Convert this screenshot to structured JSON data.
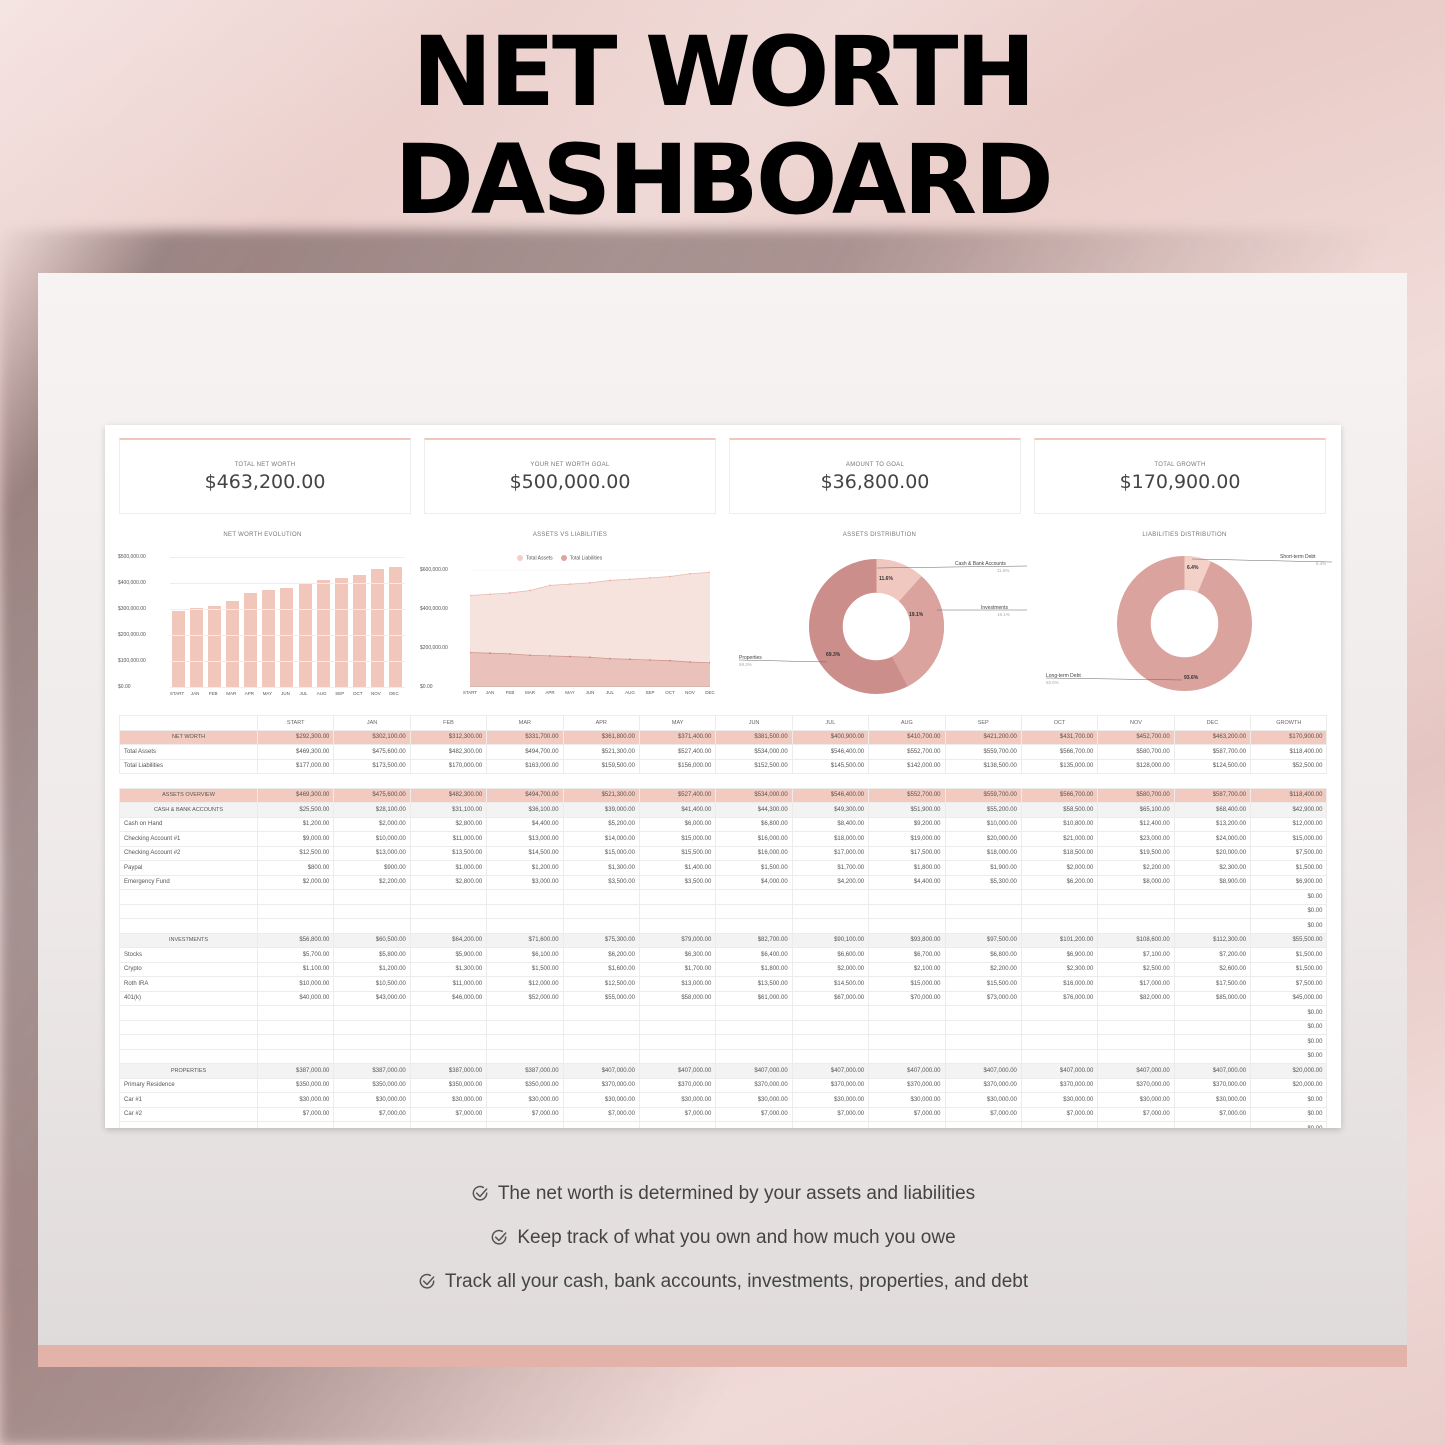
{
  "header": {
    "title_line1": "NET WORTH",
    "title_line2": "DASHBOARD"
  },
  "colors": {
    "accent_pink": "#f2cabf",
    "bar_pink": "#f1c7bb",
    "assets_fill": "#f6e2dc",
    "liabilities_fill": "#e8b9b2",
    "donut_dark": "#cc8e8a",
    "donut_mid": "#dba39d",
    "donut_light": "#f0c8c0",
    "footer_band": "#e3b2a8"
  },
  "kpis": [
    {
      "label": "TOTAL NET WORTH",
      "value": "$463,200.00"
    },
    {
      "label": "YOUR NET WORTH GOAL",
      "value": "$500,000.00"
    },
    {
      "label": "AMOUNT TO GOAL",
      "value": "$36,800.00"
    },
    {
      "label": "TOTAL GROWTH",
      "value": "$170,900.00"
    }
  ],
  "chart_data": [
    {
      "type": "bar",
      "title": "NET WORTH EVOLUTION",
      "categories": [
        "START",
        "JAN",
        "FEB",
        "MAR",
        "APR",
        "MAY",
        "JUN",
        "JUL",
        "AUG",
        "SEP",
        "OCT",
        "NOV",
        "DEC"
      ],
      "values": [
        292300,
        302100,
        312300,
        331700,
        361800,
        371400,
        381500,
        400900,
        410700,
        421200,
        431700,
        452700,
        463200
      ],
      "yticks": [
        "$500,000.00",
        "$400,000.00",
        "$300,000.00",
        "$200,000.00",
        "$100,000.00",
        "$0.00"
      ],
      "ylim": [
        0,
        500000
      ],
      "xlabel": "",
      "ylabel": "",
      "grid": true
    },
    {
      "type": "area",
      "title": "ASSETS VS LIABILITIES",
      "categories": [
        "START",
        "JAN",
        "FEB",
        "MAR",
        "APR",
        "MAY",
        "JUN",
        "JUL",
        "AUG",
        "SEP",
        "OCT",
        "NOV",
        "DEC"
      ],
      "series": [
        {
          "name": "Total Assets",
          "values": [
            469300,
            475600,
            482300,
            494700,
            521300,
            527400,
            534000,
            546400,
            552700,
            559700,
            566700,
            580700,
            587700
          ]
        },
        {
          "name": "Total Liabilities",
          "values": [
            177000,
            173500,
            170000,
            163000,
            159500,
            156000,
            152500,
            145500,
            142000,
            138500,
            135000,
            128000,
            124500
          ]
        }
      ],
      "yticks": [
        "$600,000.00",
        "$400,000.00",
        "$200,000.00",
        "$0.00"
      ],
      "ylim": [
        0,
        600000
      ],
      "legend_position": "top",
      "grid": true
    },
    {
      "type": "pie",
      "title": "ASSETS DISTRIBUTION",
      "labels": [
        "Cash & Bank Accounts",
        "Investments",
        "Properties"
      ],
      "values": [
        11.6,
        19.1,
        69.3
      ],
      "value_labels": [
        "11.6%",
        "19.1%",
        "69.3%"
      ],
      "donut": true
    },
    {
      "type": "pie",
      "title": "LIABILITIES DISTRIBUTION",
      "labels": [
        "Short-term Debt",
        "Long-term Debt"
      ],
      "values": [
        6.4,
        93.6
      ],
      "value_labels": [
        "6.4%",
        "93.6%"
      ],
      "donut": true
    }
  ],
  "table": {
    "columns": [
      "",
      "START",
      "JAN",
      "FEB",
      "MAR",
      "APR",
      "MAY",
      "JUN",
      "JUL",
      "AUG",
      "SEP",
      "OCT",
      "NOV",
      "DEC",
      "GROWTH"
    ],
    "summary": [
      {
        "label": "NET WORTH",
        "values": [
          "$292,300.00",
          "$302,100.00",
          "$312,300.00",
          "$331,700.00",
          "$361,800.00",
          "$371,400.00",
          "$381,500.00",
          "$400,900.00",
          "$410,700.00",
          "$421,200.00",
          "$431,700.00",
          "$452,700.00",
          "$463,200.00",
          "$170,900.00"
        ]
      },
      {
        "label": "Total Assets",
        "values": [
          "$469,300.00",
          "$475,600.00",
          "$482,300.00",
          "$494,700.00",
          "$521,300.00",
          "$527,400.00",
          "$534,000.00",
          "$546,400.00",
          "$552,700.00",
          "$559,700.00",
          "$566,700.00",
          "$580,700.00",
          "$587,700.00",
          "$118,400.00"
        ]
      },
      {
        "label": "Total Liabilities",
        "values": [
          "$177,000.00",
          "$173,500.00",
          "$170,000.00",
          "$163,000.00",
          "$159,500.00",
          "$156,000.00",
          "$152,500.00",
          "$145,500.00",
          "$142,000.00",
          "$138,500.00",
          "$135,000.00",
          "$128,000.00",
          "$124,500.00",
          "$52,500.00"
        ]
      }
    ],
    "assets_overview": {
      "label": "ASSETS OVERVIEW",
      "values": [
        "$469,300.00",
        "$475,600.00",
        "$482,300.00",
        "$494,700.00",
        "$521,300.00",
        "$527,400.00",
        "$534,000.00",
        "$546,400.00",
        "$552,700.00",
        "$559,700.00",
        "$566,700.00",
        "$580,700.00",
        "$587,700.00",
        "$118,400.00"
      ]
    },
    "cash": {
      "label": "CASH & BANK ACCOUNTS",
      "values": [
        "$25,500.00",
        "$28,100.00",
        "$31,100.00",
        "$36,100.00",
        "$39,000.00",
        "$41,400.00",
        "$44,300.00",
        "$49,300.00",
        "$51,900.00",
        "$55,200.00",
        "$58,500.00",
        "$65,100.00",
        "$68,400.00",
        "$42,900.00"
      ],
      "rows": [
        {
          "label": "Cash on Hand",
          "values": [
            "$1,200.00",
            "$2,000.00",
            "$2,800.00",
            "$4,400.00",
            "$5,200.00",
            "$6,000.00",
            "$6,800.00",
            "$8,400.00",
            "$9,200.00",
            "$10,000.00",
            "$10,800.00",
            "$12,400.00",
            "$13,200.00",
            "$12,000.00"
          ]
        },
        {
          "label": "Checking Account #1",
          "values": [
            "$9,000.00",
            "$10,000.00",
            "$11,000.00",
            "$13,000.00",
            "$14,000.00",
            "$15,000.00",
            "$16,000.00",
            "$18,000.00",
            "$19,000.00",
            "$20,000.00",
            "$21,000.00",
            "$23,000.00",
            "$24,000.00",
            "$15,000.00"
          ]
        },
        {
          "label": "Checking Account #2",
          "values": [
            "$12,500.00",
            "$13,000.00",
            "$13,500.00",
            "$14,500.00",
            "$15,000.00",
            "$15,500.00",
            "$16,000.00",
            "$17,000.00",
            "$17,500.00",
            "$18,000.00",
            "$18,500.00",
            "$19,500.00",
            "$20,000.00",
            "$7,500.00"
          ]
        },
        {
          "label": "Paypal",
          "values": [
            "$800.00",
            "$900.00",
            "$1,000.00",
            "$1,200.00",
            "$1,300.00",
            "$1,400.00",
            "$1,500.00",
            "$1,700.00",
            "$1,800.00",
            "$1,900.00",
            "$2,000.00",
            "$2,200.00",
            "$2,300.00",
            "$1,500.00"
          ]
        },
        {
          "label": "Emergency Fund",
          "values": [
            "$2,000.00",
            "$2,200.00",
            "$2,800.00",
            "$3,000.00",
            "$3,500.00",
            "$3,500.00",
            "$4,000.00",
            "$4,200.00",
            "$4,400.00",
            "$5,300.00",
            "$6,200.00",
            "$8,000.00",
            "$8,900.00",
            "$6,900.00"
          ]
        },
        {
          "label": "",
          "values": [
            "",
            "",
            "",
            "",
            "",
            "",
            "",
            "",
            "",
            "",
            "",
            "",
            "",
            "$0.00"
          ]
        },
        {
          "label": "",
          "values": [
            "",
            "",
            "",
            "",
            "",
            "",
            "",
            "",
            "",
            "",
            "",
            "",
            "",
            "$0.00"
          ]
        },
        {
          "label": "",
          "values": [
            "",
            "",
            "",
            "",
            "",
            "",
            "",
            "",
            "",
            "",
            "",
            "",
            "",
            "$0.00"
          ]
        }
      ]
    },
    "investments": {
      "label": "INVESTMENTS",
      "values": [
        "$56,800.00",
        "$60,500.00",
        "$64,200.00",
        "$71,600.00",
        "$75,300.00",
        "$79,000.00",
        "$82,700.00",
        "$90,100.00",
        "$93,800.00",
        "$97,500.00",
        "$101,200.00",
        "$108,600.00",
        "$112,300.00",
        "$55,500.00"
      ],
      "rows": [
        {
          "label": "Stocks",
          "values": [
            "$5,700.00",
            "$5,800.00",
            "$5,900.00",
            "$6,100.00",
            "$6,200.00",
            "$6,300.00",
            "$6,400.00",
            "$6,600.00",
            "$6,700.00",
            "$6,800.00",
            "$6,900.00",
            "$7,100.00",
            "$7,200.00",
            "$1,500.00"
          ]
        },
        {
          "label": "Crypto",
          "values": [
            "$1,100.00",
            "$1,200.00",
            "$1,300.00",
            "$1,500.00",
            "$1,600.00",
            "$1,700.00",
            "$1,800.00",
            "$2,000.00",
            "$2,100.00",
            "$2,200.00",
            "$2,300.00",
            "$2,500.00",
            "$2,600.00",
            "$1,500.00"
          ]
        },
        {
          "label": "Roth IRA",
          "values": [
            "$10,000.00",
            "$10,500.00",
            "$11,000.00",
            "$12,000.00",
            "$12,500.00",
            "$13,000.00",
            "$13,500.00",
            "$14,500.00",
            "$15,000.00",
            "$15,500.00",
            "$16,000.00",
            "$17,000.00",
            "$17,500.00",
            "$7,500.00"
          ]
        },
        {
          "label": "401(k)",
          "values": [
            "$40,000.00",
            "$43,000.00",
            "$46,000.00",
            "$52,000.00",
            "$55,000.00",
            "$58,000.00",
            "$61,000.00",
            "$67,000.00",
            "$70,000.00",
            "$73,000.00",
            "$76,000.00",
            "$82,000.00",
            "$85,000.00",
            "$45,000.00"
          ]
        },
        {
          "label": "",
          "values": [
            "",
            "",
            "",
            "",
            "",
            "",
            "",
            "",
            "",
            "",
            "",
            "",
            "",
            "$0.00"
          ]
        },
        {
          "label": "",
          "values": [
            "",
            "",
            "",
            "",
            "",
            "",
            "",
            "",
            "",
            "",
            "",
            "",
            "",
            "$0.00"
          ]
        },
        {
          "label": "",
          "values": [
            "",
            "",
            "",
            "",
            "",
            "",
            "",
            "",
            "",
            "",
            "",
            "",
            "",
            "$0.00"
          ]
        },
        {
          "label": "",
          "values": [
            "",
            "",
            "",
            "",
            "",
            "",
            "",
            "",
            "",
            "",
            "",
            "",
            "",
            "$0.00"
          ]
        }
      ]
    },
    "properties": {
      "label": "PROPERTIES",
      "values": [
        "$387,000.00",
        "$387,000.00",
        "$387,000.00",
        "$387,000.00",
        "$407,000.00",
        "$407,000.00",
        "$407,000.00",
        "$407,000.00",
        "$407,000.00",
        "$407,000.00",
        "$407,000.00",
        "$407,000.00",
        "$407,000.00",
        "$20,000.00"
      ],
      "rows": [
        {
          "label": "Primary Residence",
          "values": [
            "$350,000.00",
            "$350,000.00",
            "$350,000.00",
            "$350,000.00",
            "$370,000.00",
            "$370,000.00",
            "$370,000.00",
            "$370,000.00",
            "$370,000.00",
            "$370,000.00",
            "$370,000.00",
            "$370,000.00",
            "$370,000.00",
            "$20,000.00"
          ]
        },
        {
          "label": "Car #1",
          "values": [
            "$30,000.00",
            "$30,000.00",
            "$30,000.00",
            "$30,000.00",
            "$30,000.00",
            "$30,000.00",
            "$30,000.00",
            "$30,000.00",
            "$30,000.00",
            "$30,000.00",
            "$30,000.00",
            "$30,000.00",
            "$30,000.00",
            "$0.00"
          ]
        },
        {
          "label": "Car #2",
          "values": [
            "$7,000.00",
            "$7,000.00",
            "$7,000.00",
            "$7,000.00",
            "$7,000.00",
            "$7,000.00",
            "$7,000.00",
            "$7,000.00",
            "$7,000.00",
            "$7,000.00",
            "$7,000.00",
            "$7,000.00",
            "$7,000.00",
            "$0.00"
          ]
        },
        {
          "label": "",
          "values": [
            "",
            "",
            "",
            "",
            "",
            "",
            "",
            "",
            "",
            "",
            "",
            "",
            "",
            "$0.00"
          ]
        }
      ]
    }
  },
  "checklist": [
    "The net worth is determined by your assets and liabilities",
    "Keep track of what you own and how much you owe",
    "Track all your cash, bank accounts, investments, properties, and debt"
  ],
  "icons": {
    "check": "circle-check-icon"
  }
}
